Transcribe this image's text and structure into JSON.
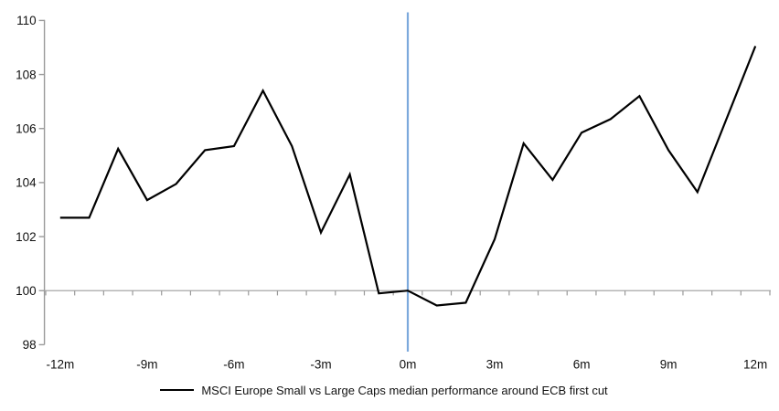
{
  "page": {
    "background_color": "#ffffff"
  },
  "chart_data": {
    "type": "line",
    "title": "",
    "xlabel": "",
    "ylabel": "",
    "x_unit": "months relative to ECB first cut",
    "x": [
      -12,
      -11,
      -10,
      -9,
      -8,
      -7,
      -6,
      -5,
      -4,
      -3,
      -2,
      -1,
      0,
      1,
      2,
      3,
      4,
      5,
      6,
      7,
      8,
      9,
      10,
      11,
      12
    ],
    "series": [
      {
        "name": "MSCI Europe Small vs Large Caps median performance around ECB first cut",
        "color": "#000000",
        "values": [
          102.7,
          102.7,
          105.25,
          103.35,
          103.95,
          105.2,
          105.35,
          107.4,
          105.35,
          102.15,
          104.3,
          99.9,
          100.0,
          99.45,
          99.55,
          101.9,
          105.45,
          104.1,
          105.85,
          106.35,
          107.2,
          105.2,
          103.65,
          106.35,
          109.05
        ]
      }
    ],
    "ylim": [
      98,
      110
    ],
    "yticks": [
      98,
      100,
      102,
      104,
      106,
      108,
      110
    ],
    "xtick_labels": [
      "-12m",
      "-9m",
      "-6m",
      "-3m",
      "0m",
      "3m",
      "6m",
      "9m",
      "12m"
    ],
    "xtick_months": [
      -12,
      -9,
      -6,
      -3,
      0,
      3,
      6,
      9,
      12
    ],
    "x_minor_tick_every_month": 1,
    "baseline_value": 100,
    "event_line_month": 0,
    "grid": "single horizontal line at 100 only",
    "legend_position": "bottom-center",
    "colors": {
      "series": "#000000",
      "event_line": "#7CA9DC",
      "axis": "#9a9a9a",
      "baseline": "#a6a6a6",
      "tick": "#9a9a9a",
      "label_text": "#111111"
    }
  }
}
